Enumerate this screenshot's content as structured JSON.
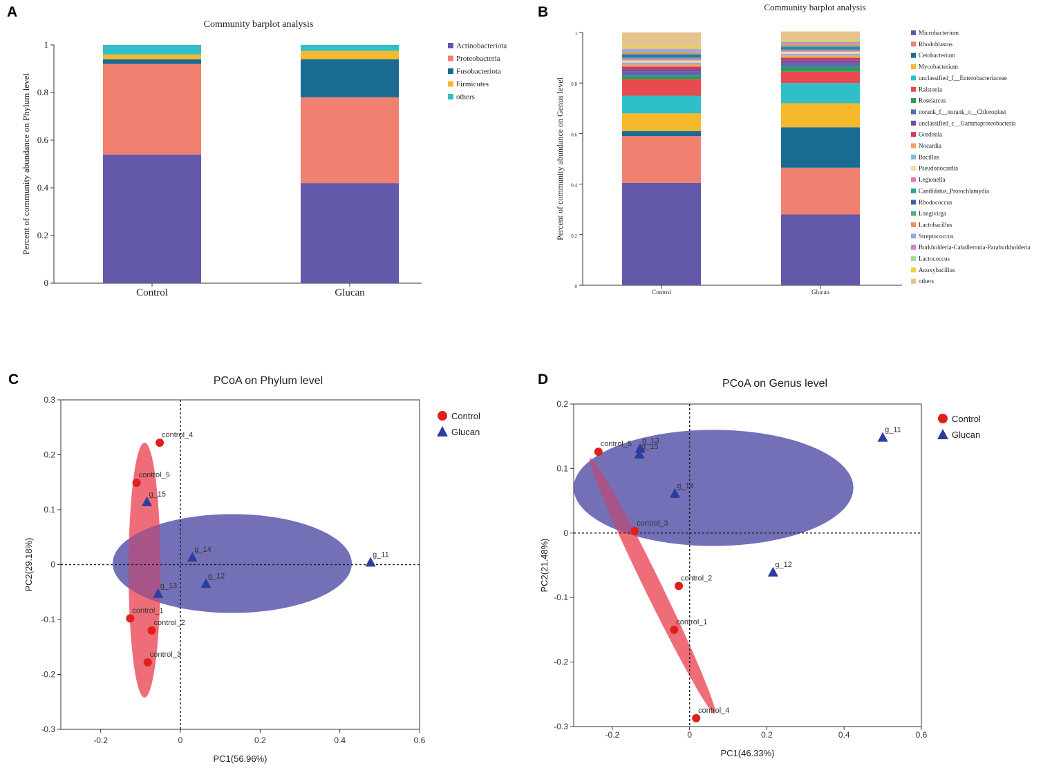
{
  "chart_data": [
    {
      "panel_label": "A",
      "type": "bar",
      "stacked": true,
      "title": "Community barplot analysis",
      "xlabel": "",
      "ylabel": "Percent of community abundance on Phylum level",
      "ylim": [
        0,
        1
      ],
      "yticks": [
        "0",
        "0.2",
        "0.4",
        "0.6",
        "0.8",
        "1"
      ],
      "categories": [
        "Control",
        "Glucan"
      ],
      "legend_position": "right",
      "series": [
        {
          "name": "Actinobacteriota",
          "color": "#6359aa",
          "values": [
            0.54,
            0.42
          ]
        },
        {
          "name": "Proteobacteria",
          "color": "#f08070",
          "values": [
            0.38,
            0.36
          ]
        },
        {
          "name": "Fusobacteriota",
          "color": "#1a6b93",
          "values": [
            0.02,
            0.16
          ]
        },
        {
          "name": "Firmicutes",
          "color": "#f6b92b",
          "values": [
            0.02,
            0.035
          ]
        },
        {
          "name": "others",
          "color": "#2fbfc9",
          "values": [
            0.04,
            0.025
          ]
        }
      ]
    },
    {
      "panel_label": "B",
      "type": "bar",
      "stacked": true,
      "title": "Community barplot analysis",
      "xlabel": "",
      "ylabel": "Percent of community abundance on Genus level",
      "ylim": [
        0,
        1
      ],
      "yticks": [
        "0",
        "0.2",
        "0.4",
        "0.6",
        "0.8",
        "1"
      ],
      "categories": [
        "Control",
        "Glucan"
      ],
      "legend_position": "right",
      "series": [
        {
          "name": "Microbacterium",
          "color": "#6359aa",
          "values": [
            0.405,
            0.28
          ]
        },
        {
          "name": "Rhodoblastus",
          "color": "#f08070",
          "values": [
            0.185,
            0.185
          ]
        },
        {
          "name": "Cetobacterium",
          "color": "#1a6b93",
          "values": [
            0.02,
            0.16
          ]
        },
        {
          "name": "Mycobacterium",
          "color": "#f6b92b",
          "values": [
            0.07,
            0.095
          ]
        },
        {
          "name": "unclassified_f__Enterobacteriaceae",
          "color": "#2fbfc9",
          "values": [
            0.07,
            0.08
          ]
        },
        {
          "name": "Ralstonia",
          "color": "#e84a4f",
          "values": [
            0.065,
            0.045
          ]
        },
        {
          "name": "Roseiarcus",
          "color": "#2e9a5f",
          "values": [
            0.015,
            0.02
          ]
        },
        {
          "name": "norank_f__norank_o__Chloroplast",
          "color": "#5a67b5",
          "values": [
            0.015,
            0.015
          ]
        },
        {
          "name": "unclassified_c__Gammaproteobacteria",
          "color": "#7b4a9a",
          "values": [
            0.01,
            0.01
          ]
        },
        {
          "name": "Gordonia",
          "color": "#d23a5a",
          "values": [
            0.01,
            0.01
          ]
        },
        {
          "name": "Nocardia",
          "color": "#f4a261",
          "values": [
            0.008,
            0.008
          ]
        },
        {
          "name": "Bacillus",
          "color": "#8ab6d6",
          "values": [
            0.008,
            0.008
          ]
        },
        {
          "name": "Pseudonocardia",
          "color": "#f7dca0",
          "values": [
            0.008,
            0.008
          ]
        },
        {
          "name": "Legionella",
          "color": "#e57ab3",
          "values": [
            0.008,
            0.006
          ]
        },
        {
          "name": "Candidatus_Protochlamydia",
          "color": "#25a7a0",
          "values": [
            0.007,
            0.006
          ]
        },
        {
          "name": "Rhodococcus",
          "color": "#3f5fa8",
          "values": [
            0.007,
            0.006
          ]
        },
        {
          "name": "Longivirga",
          "color": "#4fb38a",
          "values": [
            0.006,
            0.005
          ]
        },
        {
          "name": "Lactobacillus",
          "color": "#f28c5b",
          "values": [
            0.006,
            0.005
          ]
        },
        {
          "name": "Streptococcus",
          "color": "#9aa8d8",
          "values": [
            0.006,
            0.005
          ]
        },
        {
          "name": "Burkholderia-Caballeronia-Paraburkholderia",
          "color": "#d97fc2",
          "values": [
            0.005,
            0.005
          ]
        },
        {
          "name": "Lactococcus",
          "color": "#a8d99c",
          "values": [
            0.005,
            0.004
          ]
        },
        {
          "name": "Anoxybacillus",
          "color": "#f2d13d",
          "values": [
            0.005,
            0.004
          ]
        },
        {
          "name": "others",
          "color": "#e4c38e",
          "values": [
            0.056,
            0.034
          ]
        }
      ]
    },
    {
      "panel_label": "C",
      "type": "scatter",
      "title": "PCoA on Phylum level",
      "xlabel": "PC1(56.96%)",
      "ylabel": "PC2(29.18%)",
      "xlim": [
        -0.3,
        0.6
      ],
      "ylim": [
        -0.3,
        0.3
      ],
      "xticks": [
        -0.2,
        0,
        0.2,
        0.4,
        0.6
      ],
      "yticks": [
        -0.3,
        -0.2,
        -0.1,
        0,
        0.1,
        0.2,
        0.3
      ],
      "tick_labels_x": [
        "-0.2",
        "0",
        "0.2",
        "0.4",
        "0.6"
      ],
      "tick_labels_y": [
        "-0.3",
        "-0.2",
        "-0.1",
        "0",
        "0.1",
        "0.2",
        "0.3"
      ],
      "legend_position": "top-right",
      "groups": [
        {
          "name": "Control",
          "marker": "circle",
          "color": "#e0201c",
          "ellipse_color": "#f07070",
          "ellipse": {
            "cx": -0.09,
            "cy": -0.01,
            "rx": 0.04,
            "ry": 0.232,
            "angle": 0
          },
          "points": [
            {
              "label": "control_1",
              "x": -0.126,
              "y": -0.098
            },
            {
              "label": "control_2",
              "x": -0.072,
              "y": -0.12
            },
            {
              "label": "control_3",
              "x": -0.082,
              "y": -0.178
            },
            {
              "label": "control_4",
              "x": -0.052,
              "y": 0.222
            },
            {
              "label": "control_5",
              "x": -0.11,
              "y": 0.149
            }
          ]
        },
        {
          "name": "Glucan",
          "marker": "triangle",
          "color": "#2b3ea0",
          "ellipse_color": "#5451a8",
          "ellipse": {
            "cx": 0.13,
            "cy": 0.002,
            "rx": 0.3,
            "ry": 0.09,
            "angle": 0
          },
          "points": [
            {
              "label": "g_11",
              "x": 0.477,
              "y": 0.004
            },
            {
              "label": "g_12",
              "x": 0.064,
              "y": -0.035
            },
            {
              "label": "g_13",
              "x": -0.056,
              "y": -0.053
            },
            {
              "label": "g_14",
              "x": 0.03,
              "y": 0.013
            },
            {
              "label": "g_15",
              "x": -0.084,
              "y": 0.114
            }
          ]
        }
      ]
    },
    {
      "panel_label": "D",
      "type": "scatter",
      "title": "PCoA on Genus level",
      "xlabel": "PC1(46.33%)",
      "ylabel": "PC2(21.48%)",
      "xlim": [
        -0.3,
        0.6
      ],
      "ylim": [
        -0.3,
        0.2
      ],
      "xticks": [
        -0.2,
        0,
        0.2,
        0.4,
        0.6
      ],
      "yticks": [
        -0.3,
        -0.2,
        -0.1,
        0,
        0.1,
        0.2
      ],
      "tick_labels_x": [
        "-0.2",
        "0",
        "0.2",
        "0.4",
        "0.6"
      ],
      "tick_labels_y": [
        "-0.3",
        "-0.2",
        "-0.1",
        "0",
        "0.1",
        "0.2"
      ],
      "legend_position": "top-right",
      "groups": [
        {
          "name": "Control",
          "marker": "circle",
          "color": "#e0201c",
          "ellipse_color": "#f07070",
          "ellipse": {
            "cx": -0.096,
            "cy": -0.082,
            "rx": 0.022,
            "ry": 0.22,
            "angle": -26
          },
          "points": [
            {
              "label": "control_1",
              "x": -0.04,
              "y": -0.15
            },
            {
              "label": "control_2",
              "x": -0.028,
              "y": -0.082
            },
            {
              "label": "control_3",
              "x": -0.142,
              "y": 0.003
            },
            {
              "label": "control_4",
              "x": 0.017,
              "y": -0.287
            },
            {
              "label": "control_5",
              "x": -0.236,
              "y": 0.126
            }
          ]
        },
        {
          "name": "Glucan",
          "marker": "triangle",
          "color": "#2b3ea0",
          "ellipse_color": "#5451a8",
          "ellipse": {
            "cx": 0.062,
            "cy": 0.07,
            "rx": 0.362,
            "ry": 0.09,
            "angle": 0
          },
          "points": [
            {
              "label": "g_11",
              "x": 0.5,
              "y": 0.148
            },
            {
              "label": "g_12",
              "x": 0.216,
              "y": -0.061
            },
            {
              "label": "g_13",
              "x": -0.128,
              "y": 0.131
            },
            {
              "label": "g_14",
              "x": -0.038,
              "y": 0.061
            },
            {
              "label": "g_15",
              "x": -0.13,
              "y": 0.122
            }
          ]
        }
      ]
    }
  ]
}
